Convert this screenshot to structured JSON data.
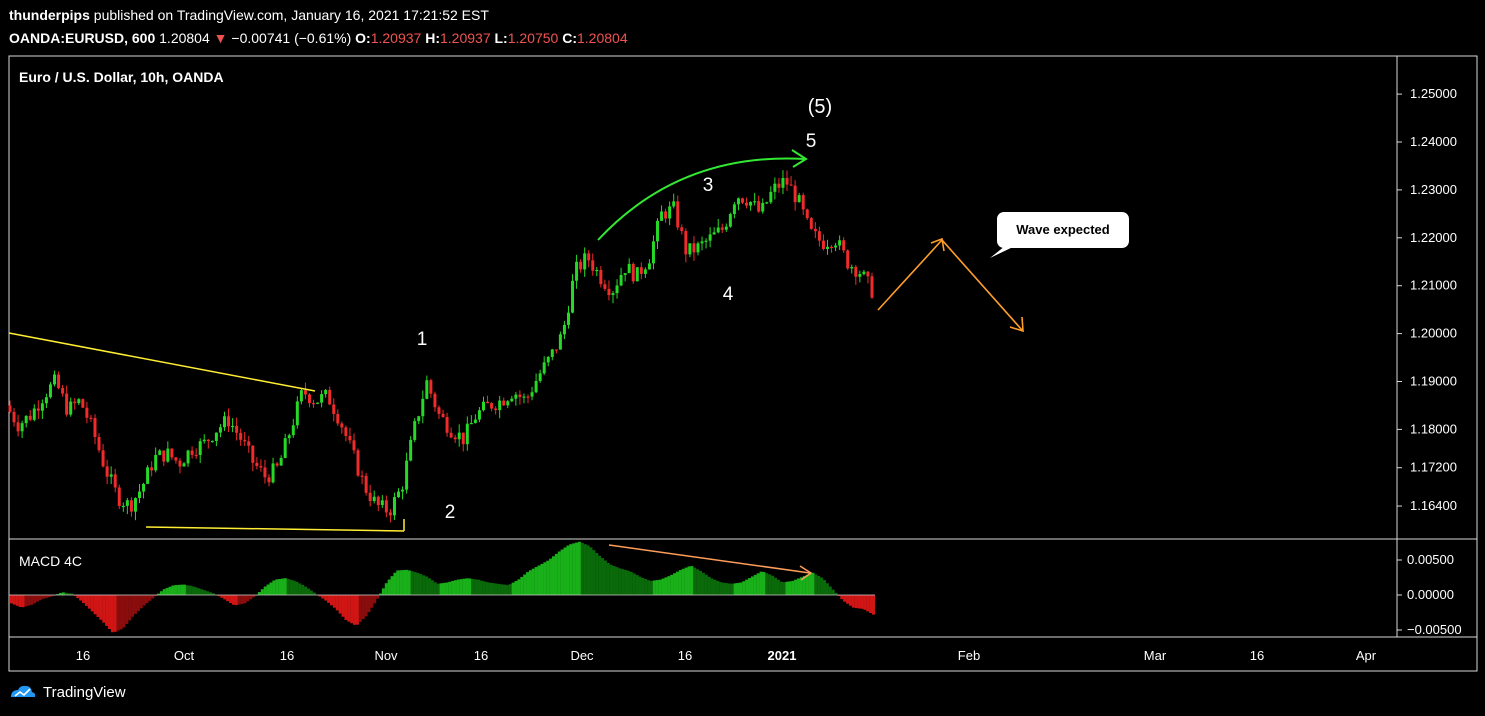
{
  "header": {
    "author": "thunderpips",
    "published_text": "published on TradingView.com, January 16, 2021 17:21:52 EST",
    "symbol": "OANDA:EURUSD, 600",
    "last": "1.20804",
    "change": "−0.00741 (−0.61%)",
    "open_label": "O:",
    "open": "1.20937",
    "high_label": "H:",
    "high": "1.20937",
    "low_label": "L:",
    "low": "1.20750",
    "close_label": "C:",
    "close": "1.20804"
  },
  "chart_title": "Euro / U.S. Dollar, 10h, OANDA",
  "indicator_label": "MACD 4C",
  "branding": "TradingView",
  "colors": {
    "up": "#26d926",
    "down": "#ef2b2b",
    "trend": "#ffee33",
    "arc": "#33e833",
    "projection": "#ff9d2a",
    "divergence": "#ff9d5a",
    "macd_dark": "#0a6a0a",
    "macd_light": "#19b019",
    "macd_neg": "#8a0d0d",
    "macd_neg_light": "#d01515"
  },
  "chart_data": [
    {
      "type": "candlestick",
      "title": "Euro / U.S. Dollar, 10h, OANDA",
      "ylim": [
        1.16,
        1.255
      ],
      "y_ticks": [
        "1.25000",
        "1.24000",
        "1.23000",
        "1.22000",
        "1.21000",
        "1.20000",
        "1.19000",
        "1.18000",
        "1.17200",
        "1.16400"
      ],
      "x_ticks": [
        "16",
        "Oct",
        "16",
        "Nov",
        "16",
        "Dec",
        "16",
        "2021",
        "Feb",
        "Mar",
        "16",
        "Apr"
      ],
      "price_path": [
        1.185,
        1.181,
        1.183,
        1.187,
        1.19,
        1.184,
        1.186,
        1.18,
        1.172,
        1.166,
        1.164,
        1.168,
        1.174,
        1.175,
        1.173,
        1.176,
        1.177,
        1.18,
        1.182,
        1.178,
        1.173,
        1.17,
        1.172,
        1.18,
        1.188,
        1.186,
        1.187,
        1.182,
        1.175,
        1.168,
        1.164,
        1.163,
        1.168,
        1.18,
        1.19,
        1.183,
        1.18,
        1.178,
        1.183,
        1.185,
        1.186,
        1.188,
        1.186,
        1.191,
        1.195,
        1.2,
        1.213,
        1.216,
        1.212,
        1.209,
        1.214,
        1.212,
        1.216,
        1.225,
        1.226,
        1.217,
        1.218,
        1.22,
        1.222,
        1.229,
        1.228,
        1.225,
        1.23,
        1.232,
        1.228,
        1.221,
        1.219,
        1.22,
        1.215,
        1.213,
        1.209
      ],
      "wave_labels": [
        "1",
        "2",
        "3",
        "4",
        "5",
        "(5)"
      ],
      "annotation": "Wave expected"
    },
    {
      "type": "histogram",
      "title": "MACD 4C",
      "ylim": [
        -0.0065,
        0.0085
      ],
      "y_ticks": [
        "0.00500",
        "0.00000",
        "−0.00500"
      ],
      "values": [
        -0.0012,
        -0.0018,
        -0.0014,
        -0.0006,
        -0.0002,
        0.0004,
        0.0002,
        -0.001,
        -0.0024,
        -0.0038,
        -0.0054,
        -0.0048,
        -0.003,
        -0.0016,
        -0.0004,
        0.0008,
        0.0014,
        0.0015,
        0.0012,
        0.0007,
        0.0002,
        -0.0006,
        -0.0015,
        -0.0012,
        -0.0002,
        0.0012,
        0.0022,
        0.0024,
        0.002,
        0.0012,
        0.0002,
        -0.0008,
        -0.002,
        -0.0036,
        -0.0044,
        -0.003,
        -0.0008,
        0.0018,
        0.0035,
        0.0036,
        0.0032,
        0.0026,
        0.0016,
        0.0018,
        0.0022,
        0.0024,
        0.0022,
        0.0018,
        0.0016,
        0.0014,
        0.0022,
        0.0034,
        0.0042,
        0.005,
        0.0062,
        0.0072,
        0.0076,
        0.007,
        0.0056,
        0.0044,
        0.0038,
        0.0034,
        0.0026,
        0.002,
        0.0022,
        0.0028,
        0.0036,
        0.0042,
        0.0034,
        0.0024,
        0.0018,
        0.0016,
        0.0018,
        0.0026,
        0.0034,
        0.0028,
        0.0018,
        0.002,
        0.0026,
        0.0032,
        0.0024,
        0.0008,
        -0.0008,
        -0.0018,
        -0.002,
        -0.0028
      ]
    }
  ]
}
